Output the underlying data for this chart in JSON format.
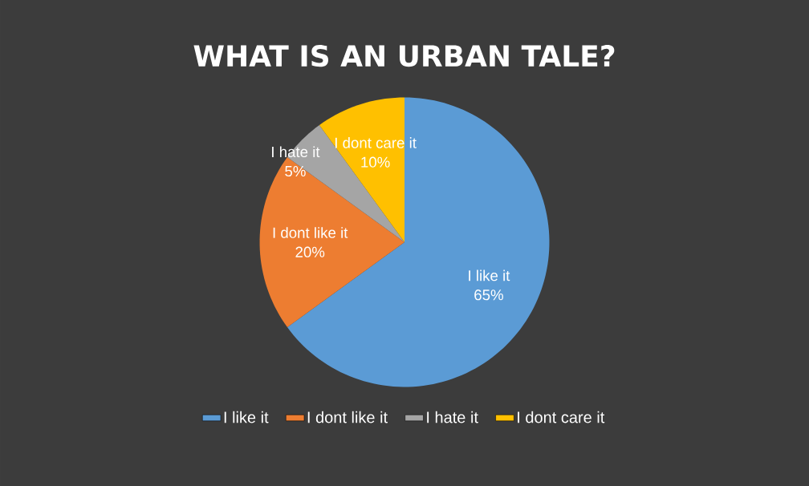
{
  "chart_data": {
    "type": "pie",
    "title": "WHAT IS AN URBAN TALE?",
    "categories": [
      "I like it",
      "I dont like it",
      "I hate it",
      "I dont care it"
    ],
    "values": [
      65,
      20,
      5,
      10
    ],
    "value_labels": [
      "65%",
      "20%",
      "5%",
      "10%"
    ],
    "colors": [
      "#5b9bd5",
      "#ed7d31",
      "#a5a5a5",
      "#ffc000"
    ],
    "legend": "bottom"
  }
}
